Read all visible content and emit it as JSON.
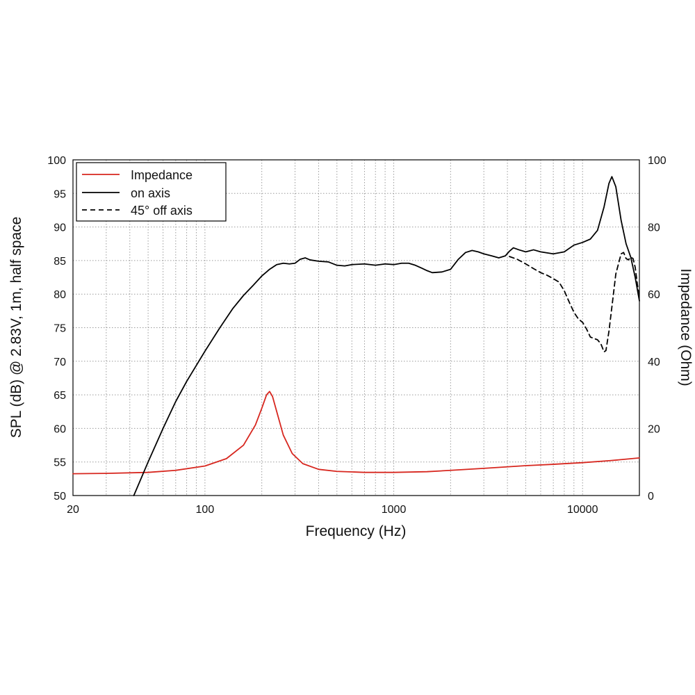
{
  "chart_data": {
    "type": "line",
    "xscale": "log",
    "xlabel": "Frequency (Hz)",
    "ylabel": "SPL (dB) @ 2.83V, 1m, half space",
    "y2label": "Impedance (Ohm)",
    "xlim": [
      20,
      20000
    ],
    "ylim": [
      50,
      100
    ],
    "y2lim": [
      0,
      100
    ],
    "grid": true,
    "legend_position": "top-left",
    "x_ticks": [
      {
        "value": 20,
        "label": "20"
      },
      {
        "value": 100,
        "label": "100"
      },
      {
        "value": 1000,
        "label": "1000"
      },
      {
        "value": 10000,
        "label": "10000"
      }
    ],
    "y_ticks": [
      {
        "value": 50,
        "label": "50"
      },
      {
        "value": 55,
        "label": "55"
      },
      {
        "value": 60,
        "label": "60"
      },
      {
        "value": 65,
        "label": "65"
      },
      {
        "value": 70,
        "label": "70"
      },
      {
        "value": 75,
        "label": "75"
      },
      {
        "value": 80,
        "label": "80"
      },
      {
        "value": 85,
        "label": "85"
      },
      {
        "value": 90,
        "label": "90"
      },
      {
        "value": 95,
        "label": "95"
      },
      {
        "value": 100,
        "label": "100"
      }
    ],
    "y2_ticks": [
      {
        "value": 0,
        "label": "0"
      },
      {
        "value": 20,
        "label": "20"
      },
      {
        "value": 40,
        "label": "40"
      },
      {
        "value": 60,
        "label": "60"
      },
      {
        "value": 80,
        "label": "80"
      },
      {
        "value": 100,
        "label": "100"
      }
    ],
    "series": [
      {
        "name": "Impedance",
        "axis": "right",
        "color": "#d7261e",
        "style": "solid",
        "points": [
          [
            20,
            6.5
          ],
          [
            30,
            6.6
          ],
          [
            50,
            6.9
          ],
          [
            70,
            7.5
          ],
          [
            100,
            8.8
          ],
          [
            130,
            11
          ],
          [
            160,
            15
          ],
          [
            185,
            21
          ],
          [
            200,
            26
          ],
          [
            212,
            30
          ],
          [
            220,
            31
          ],
          [
            228,
            29.5
          ],
          [
            240,
            25
          ],
          [
            260,
            18
          ],
          [
            290,
            12.5
          ],
          [
            330,
            9.5
          ],
          [
            400,
            7.8
          ],
          [
            500,
            7.2
          ],
          [
            700,
            6.9
          ],
          [
            1000,
            6.9
          ],
          [
            1500,
            7.1
          ],
          [
            2000,
            7.5
          ],
          [
            3000,
            8.1
          ],
          [
            5000,
            8.9
          ],
          [
            7000,
            9.3
          ],
          [
            10000,
            9.8
          ],
          [
            14000,
            10.4
          ],
          [
            20000,
            11.2
          ]
        ]
      },
      {
        "name": "on axis",
        "axis": "left",
        "color": "#000000",
        "style": "solid",
        "points": [
          [
            42,
            50
          ],
          [
            50,
            55
          ],
          [
            60,
            60
          ],
          [
            70,
            64
          ],
          [
            80,
            67
          ],
          [
            100,
            71.5
          ],
          [
            120,
            75
          ],
          [
            140,
            77.8
          ],
          [
            160,
            79.8
          ],
          [
            180,
            81.3
          ],
          [
            200,
            82.7
          ],
          [
            220,
            83.7
          ],
          [
            240,
            84.4
          ],
          [
            260,
            84.6
          ],
          [
            280,
            84.5
          ],
          [
            300,
            84.6
          ],
          [
            320,
            85.2
          ],
          [
            340,
            85.4
          ],
          [
            360,
            85.1
          ],
          [
            400,
            84.9
          ],
          [
            450,
            84.8
          ],
          [
            500,
            84.3
          ],
          [
            550,
            84.2
          ],
          [
            600,
            84.4
          ],
          [
            700,
            84.5
          ],
          [
            800,
            84.3
          ],
          [
            900,
            84.5
          ],
          [
            1000,
            84.4
          ],
          [
            1100,
            84.6
          ],
          [
            1200,
            84.6
          ],
          [
            1300,
            84.3
          ],
          [
            1400,
            83.9
          ],
          [
            1500,
            83.5
          ],
          [
            1600,
            83.2
          ],
          [
            1800,
            83.3
          ],
          [
            2000,
            83.7
          ],
          [
            2200,
            85.2
          ],
          [
            2400,
            86.2
          ],
          [
            2600,
            86.5
          ],
          [
            2800,
            86.3
          ],
          [
            3000,
            86
          ],
          [
            3300,
            85.7
          ],
          [
            3600,
            85.4
          ],
          [
            3900,
            85.7
          ],
          [
            4100,
            86.4
          ],
          [
            4300,
            86.9
          ],
          [
            4600,
            86.6
          ],
          [
            5000,
            86.3
          ],
          [
            5500,
            86.6
          ],
          [
            6000,
            86.3
          ],
          [
            7000,
            86
          ],
          [
            8000,
            86.3
          ],
          [
            9000,
            87.3
          ],
          [
            10000,
            87.7
          ],
          [
            11000,
            88.2
          ],
          [
            12000,
            89.5
          ],
          [
            13000,
            93
          ],
          [
            13800,
            96.5
          ],
          [
            14300,
            97.5
          ],
          [
            15000,
            96
          ],
          [
            16000,
            91
          ],
          [
            17000,
            87.5
          ],
          [
            18000,
            85.5
          ],
          [
            19000,
            82.5
          ],
          [
            20000,
            79
          ]
        ]
      },
      {
        "name": "45° off axis",
        "axis": "left",
        "color": "#000000",
        "style": "dashed",
        "points": [
          [
            4100,
            85.6
          ],
          [
            4500,
            85.2
          ],
          [
            5000,
            84.5
          ],
          [
            5500,
            83.8
          ],
          [
            6000,
            83.2
          ],
          [
            6500,
            82.8
          ],
          [
            7000,
            82.3
          ],
          [
            7500,
            81.8
          ],
          [
            8000,
            80.5
          ],
          [
            8500,
            78.8
          ],
          [
            9000,
            77.3
          ],
          [
            9500,
            76.3
          ],
          [
            10000,
            75.8
          ],
          [
            10500,
            74.8
          ],
          [
            11000,
            73.6
          ],
          [
            12000,
            73.2
          ],
          [
            12500,
            72.6
          ],
          [
            13000,
            71.4
          ],
          [
            13300,
            71.6
          ],
          [
            13800,
            74.5
          ],
          [
            14500,
            79.5
          ],
          [
            15000,
            83
          ],
          [
            16000,
            86
          ],
          [
            16500,
            86.2
          ],
          [
            17000,
            85.3
          ],
          [
            17500,
            85.1
          ],
          [
            18000,
            85.5
          ],
          [
            18500,
            85.3
          ],
          [
            19000,
            84
          ],
          [
            19500,
            81.5
          ],
          [
            20000,
            79.5
          ]
        ]
      }
    ]
  }
}
